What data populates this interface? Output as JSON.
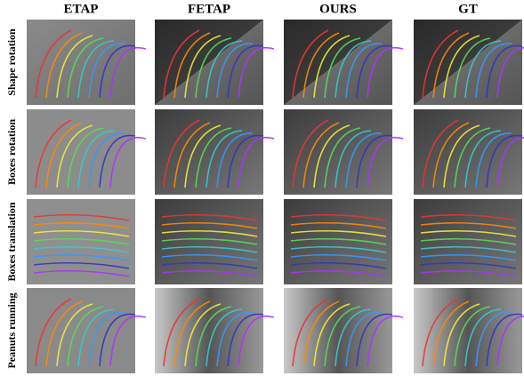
{
  "columns": [
    "ETAP",
    "FETAP",
    "OURS",
    "GT"
  ],
  "rows": [
    "Shape rotation",
    "Boxes rotation",
    "Boxes translation",
    "Peanuts running"
  ]
}
